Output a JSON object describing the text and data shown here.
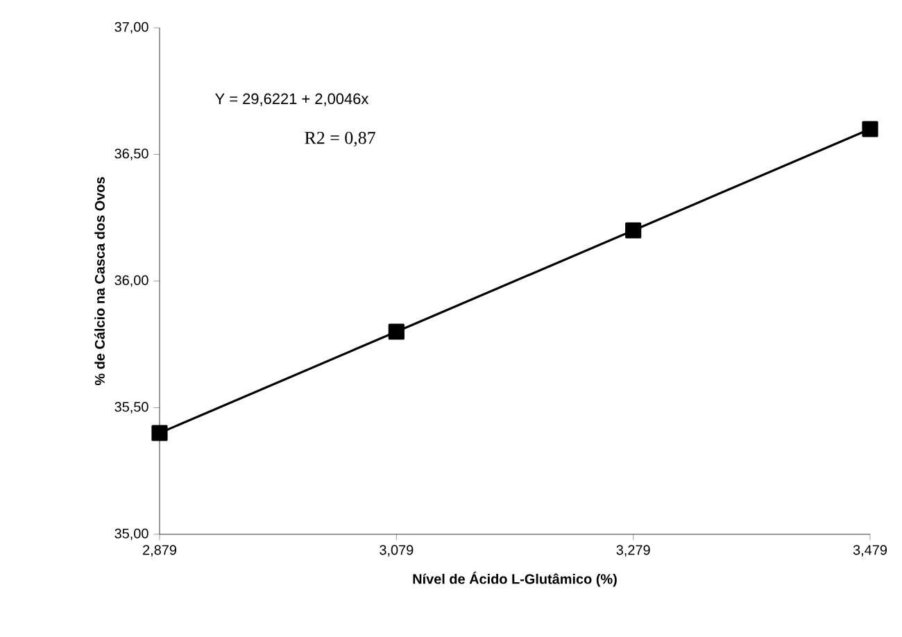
{
  "chart_data": {
    "type": "line",
    "xlabel": "Nível de Ácido L-Glutâmico (%)",
    "ylabel": "% de Cálcio na Casca dos Ovos",
    "categories": [
      "2,879",
      "3,079",
      "3,279",
      "3,479"
    ],
    "series": [
      {
        "color": "#000000",
        "values": [
          35.4,
          35.8,
          36.2,
          36.6
        ]
      }
    ],
    "ylim": [
      35,
      37
    ],
    "yticks": [
      {
        "value": 35,
        "label": "35,00"
      },
      {
        "value": 35.5,
        "label": "35,50"
      },
      {
        "value": 36,
        "label": "36,00"
      },
      {
        "value": 36.5,
        "label": "36,50"
      },
      {
        "value": 37,
        "label": "37,00"
      }
    ],
    "annotations": [
      "Y = 29,6221  + 2,0046x",
      "R2 = 0,87"
    ],
    "marker": "square",
    "line_style": "solid",
    "grid": false
  }
}
